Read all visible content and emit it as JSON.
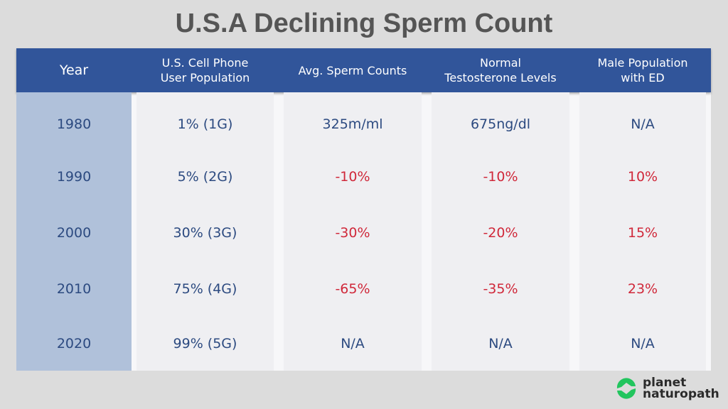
{
  "title": "U.S.A Declining Sperm Count",
  "chart_data": {
    "type": "table",
    "title": "U.S.A Declining Sperm Count",
    "columns": [
      "Year",
      "U.S. Cell Phone\nUser Population",
      "Avg. Sperm Counts",
      "Normal\nTestosterone Levels",
      "Male Population\nwith ED"
    ],
    "rows": [
      [
        "1980",
        "1% (1G)",
        "325m/ml",
        "675ng/dl",
        "N/A"
      ],
      [
        "1990",
        "5% (2G)",
        "-10%",
        "-10%",
        "10%"
      ],
      [
        "2000",
        "30% (3G)",
        "-30%",
        "-20%",
        "15%"
      ],
      [
        "2010",
        "75% (4G)",
        "-65%",
        "-35%",
        "23%"
      ],
      [
        "2020",
        "99% (5G)",
        "N/A",
        "N/A",
        "N/A"
      ]
    ],
    "colors": {
      "header": "#31559a",
      "year_column": "#b0c1da",
      "text": "#2c4a80",
      "change_text": "#d0283a"
    }
  },
  "logo": {
    "line1": "planet",
    "line2": "naturopath",
    "color": "#22c55e"
  }
}
